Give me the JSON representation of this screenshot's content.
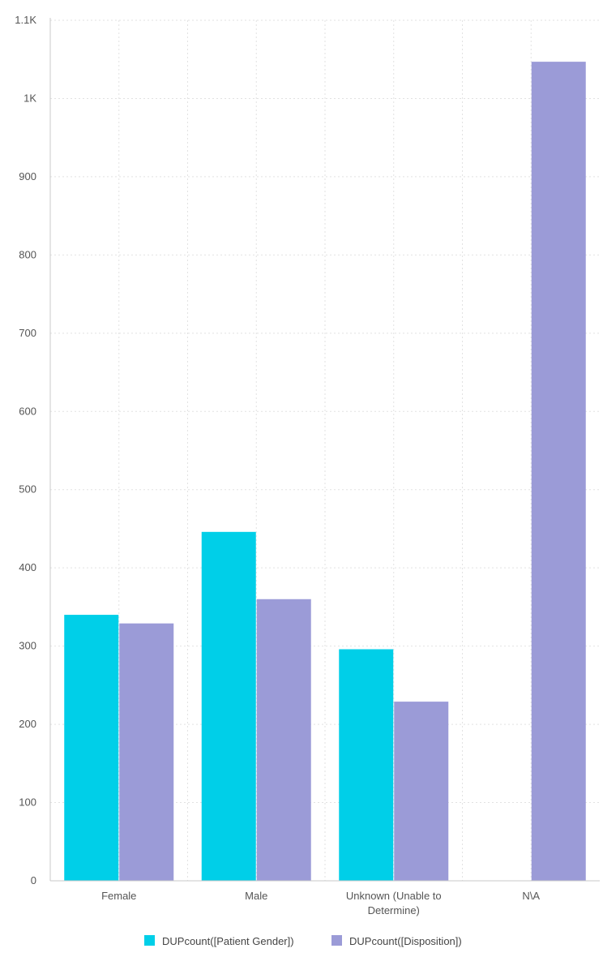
{
  "chart_data": {
    "type": "bar",
    "categories": [
      "Female",
      "Male",
      "Unknown (Unable to Determine)",
      "N\\A"
    ],
    "category_label_lines": [
      [
        "Female"
      ],
      [
        "Male"
      ],
      [
        "Unknown (Unable to",
        "Determine)"
      ],
      [
        "N\\A"
      ]
    ],
    "series": [
      {
        "name": "DUPcount([Patient Gender])",
        "values": [
          340,
          446,
          296,
          null
        ],
        "color": "#00cfe8"
      },
      {
        "name": "DUPcount([Disposition])",
        "values": [
          329,
          360,
          229,
          1047
        ],
        "color": "#9b9bd7"
      }
    ],
    "ylim": [
      0,
      1100
    ],
    "y_ticks": [
      0,
      100,
      200,
      300,
      400,
      500,
      600,
      700,
      800,
      900,
      1000,
      1100
    ],
    "y_tick_labels": [
      "0",
      "100",
      "200",
      "300",
      "400",
      "500",
      "600",
      "700",
      "800",
      "900",
      "1K",
      "1.1K"
    ],
    "grid": true,
    "legend_position": "bottom-center",
    "title": "",
    "xlabel": "",
    "ylabel": ""
  }
}
